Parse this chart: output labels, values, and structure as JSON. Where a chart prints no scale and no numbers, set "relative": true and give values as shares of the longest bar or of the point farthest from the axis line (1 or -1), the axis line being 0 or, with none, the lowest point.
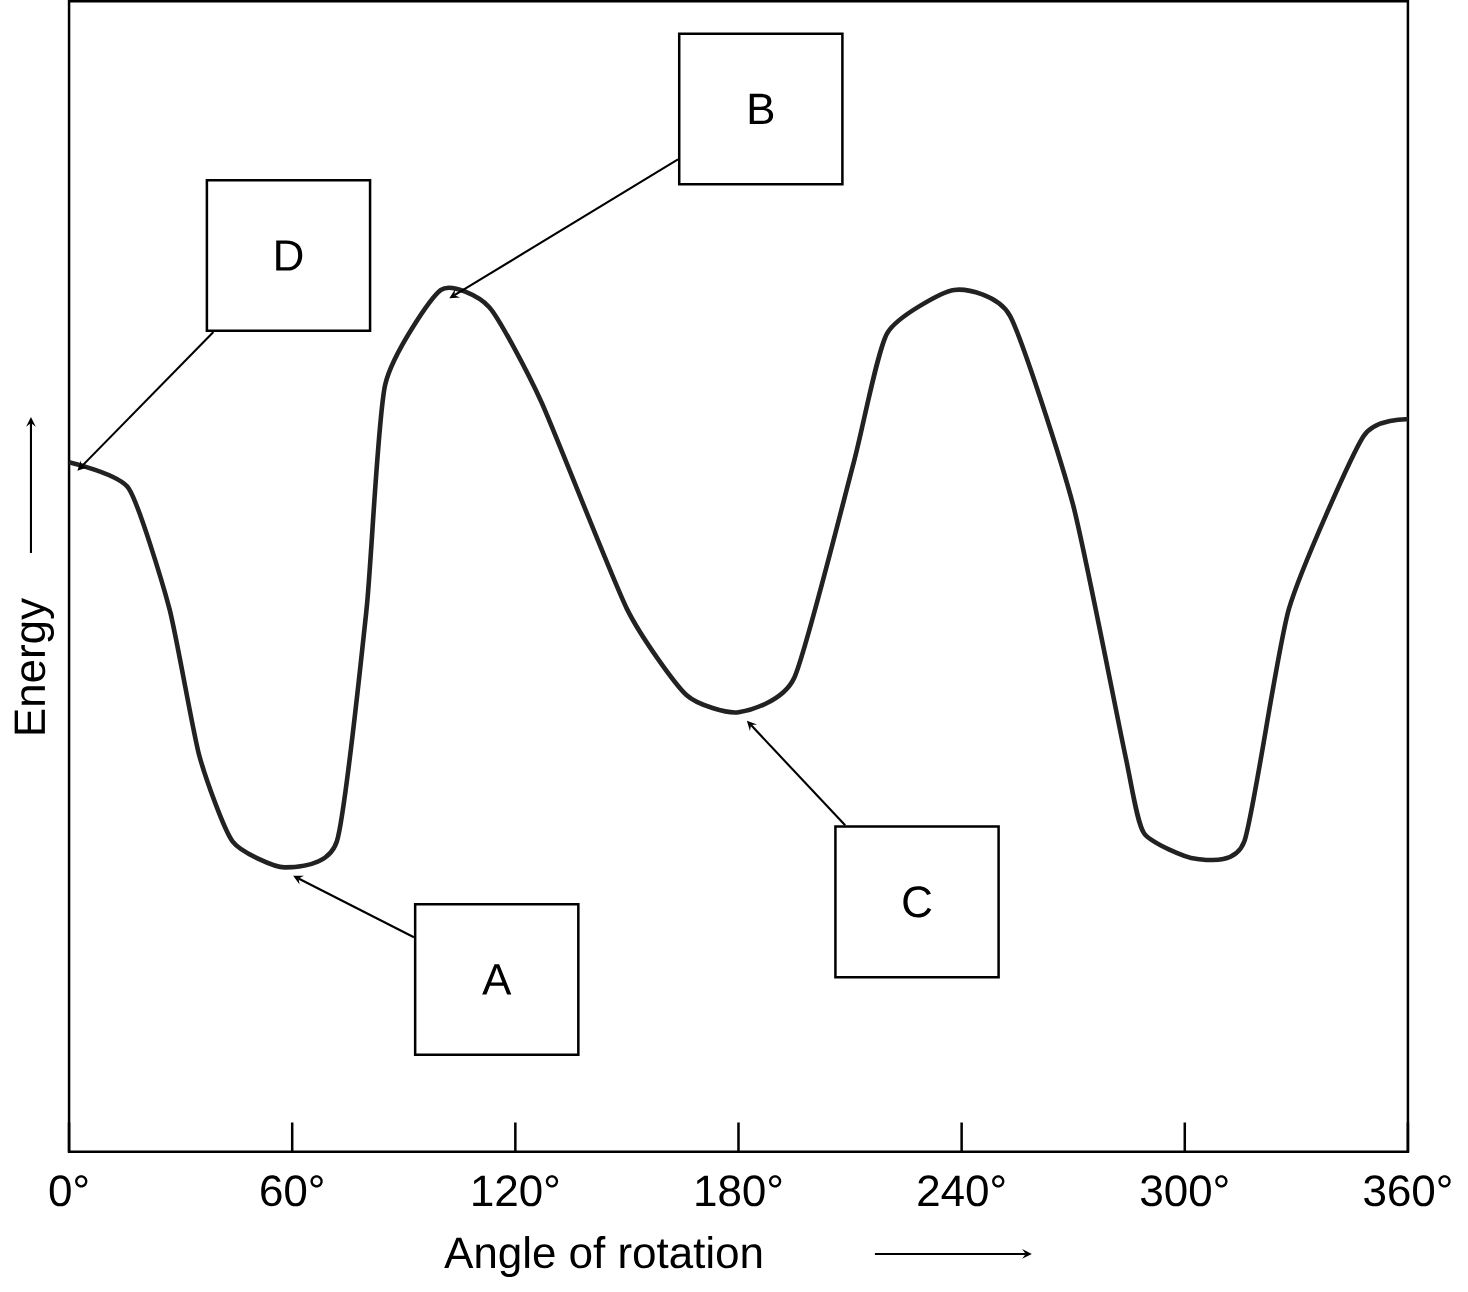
{
  "chart_data": {
    "type": "line",
    "relative": true,
    "xlabel": "Angle of rotation",
    "ylabel": "Energy",
    "color": "#222222",
    "x": [
      0,
      16,
      27,
      35,
      44,
      58,
      72,
      80,
      85,
      100,
      113,
      127,
      150,
      166,
      180,
      195,
      211,
      220,
      238,
      253,
      270,
      284,
      289,
      303,
      316,
      328,
      348,
      360
    ],
    "values": [
      0.8,
      0.77,
      0.63,
      0.46,
      0.36,
      0.33,
      0.36,
      0.63,
      0.89,
      1.0,
      0.98,
      0.87,
      0.63,
      0.53,
      0.51,
      0.55,
      0.8,
      0.95,
      1.0,
      0.97,
      0.75,
      0.46,
      0.37,
      0.34,
      0.36,
      0.63,
      0.83,
      0.85
    ],
    "xlim": [
      0,
      360
    ],
    "xticks": [
      {
        "value": 0,
        "label": "0°"
      },
      {
        "value": 60,
        "label": "60°"
      },
      {
        "value": 120,
        "label": "120°"
      },
      {
        "value": 180,
        "label": "180°"
      },
      {
        "value": 240,
        "label": "240°"
      },
      {
        "value": 300,
        "label": "300°"
      },
      {
        "value": 360,
        "label": "360°"
      }
    ],
    "annotations": [
      "A",
      "B",
      "C",
      "D"
    ]
  }
}
